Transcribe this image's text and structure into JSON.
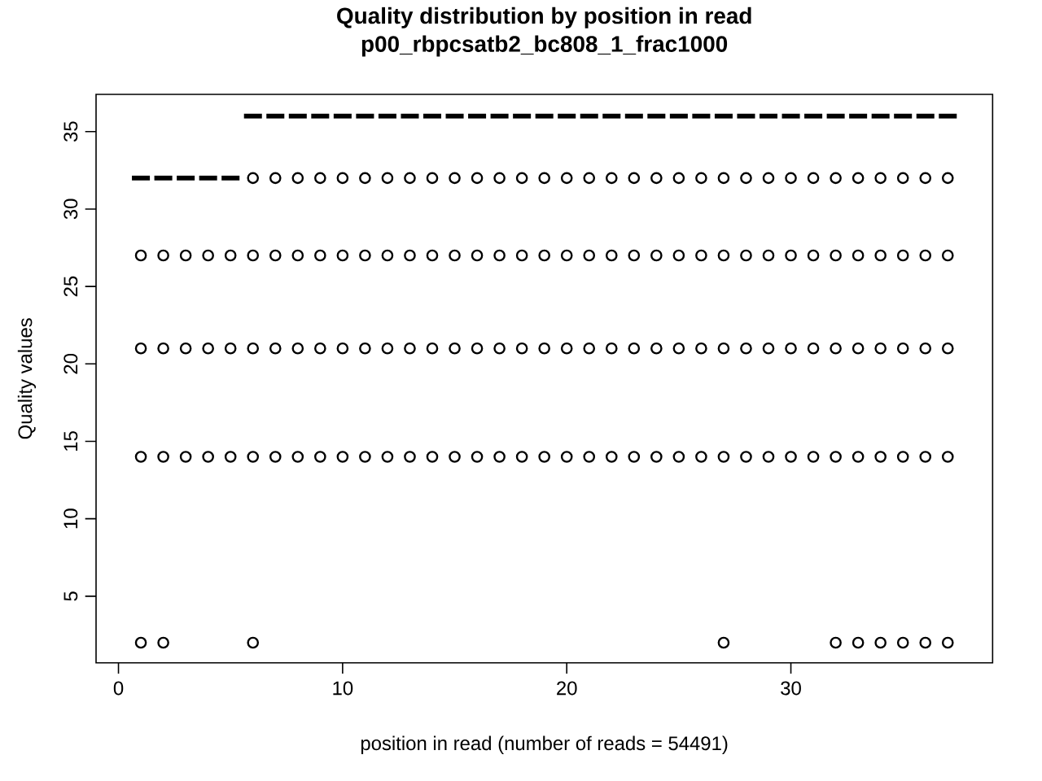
{
  "chart_data": {
    "type": "box",
    "title": "Quality distribution by position in read",
    "subtitle": "p00_rbpcsatb2_bc808_1_frac1000",
    "xlabel": "position in read (number of reads = 54491)",
    "ylabel": "Quality values",
    "x": [
      1,
      2,
      3,
      4,
      5,
      6,
      7,
      8,
      9,
      10,
      11,
      12,
      13,
      14,
      15,
      16,
      17,
      18,
      19,
      20,
      21,
      22,
      23,
      24,
      25,
      26,
      27,
      28,
      29,
      30,
      31,
      32,
      33,
      34,
      35,
      36,
      37
    ],
    "xlim": [
      -1,
      39
    ],
    "xticks": [
      0,
      10,
      20,
      30
    ],
    "ylim": [
      0.7,
      37.4
    ],
    "yticks": [
      5,
      10,
      15,
      20,
      25,
      30,
      35
    ],
    "marker": "circle",
    "color": "#000000",
    "boxes": [
      {
        "low": 32,
        "q1": 32,
        "median": 32,
        "q3": 32,
        "high": 32,
        "outliers": [
          2,
          14,
          21,
          27
        ]
      },
      {
        "low": 32,
        "q1": 32,
        "median": 32,
        "q3": 32,
        "high": 32,
        "outliers": [
          2,
          14,
          21,
          27
        ]
      },
      {
        "low": 32,
        "q1": 32,
        "median": 32,
        "q3": 32,
        "high": 32,
        "outliers": [
          14,
          21,
          27
        ]
      },
      {
        "low": 32,
        "q1": 32,
        "median": 32,
        "q3": 32,
        "high": 32,
        "outliers": [
          14,
          21,
          27
        ]
      },
      {
        "low": 32,
        "q1": 32,
        "median": 32,
        "q3": 32,
        "high": 32,
        "outliers": [
          14,
          21,
          27
        ]
      },
      {
        "low": 36,
        "q1": 36,
        "median": 36,
        "q3": 36,
        "high": 36,
        "outliers": [
          2,
          14,
          21,
          27,
          32
        ]
      },
      {
        "low": 36,
        "q1": 36,
        "median": 36,
        "q3": 36,
        "high": 36,
        "outliers": [
          14,
          21,
          27,
          32
        ]
      },
      {
        "low": 36,
        "q1": 36,
        "median": 36,
        "q3": 36,
        "high": 36,
        "outliers": [
          14,
          21,
          27,
          32
        ]
      },
      {
        "low": 36,
        "q1": 36,
        "median": 36,
        "q3": 36,
        "high": 36,
        "outliers": [
          14,
          21,
          27,
          32
        ]
      },
      {
        "low": 36,
        "q1": 36,
        "median": 36,
        "q3": 36,
        "high": 36,
        "outliers": [
          14,
          21,
          27,
          32
        ]
      },
      {
        "low": 36,
        "q1": 36,
        "median": 36,
        "q3": 36,
        "high": 36,
        "outliers": [
          14,
          21,
          27,
          32
        ]
      },
      {
        "low": 36,
        "q1": 36,
        "median": 36,
        "q3": 36,
        "high": 36,
        "outliers": [
          14,
          21,
          27,
          32
        ]
      },
      {
        "low": 36,
        "q1": 36,
        "median": 36,
        "q3": 36,
        "high": 36,
        "outliers": [
          14,
          21,
          27,
          32
        ]
      },
      {
        "low": 36,
        "q1": 36,
        "median": 36,
        "q3": 36,
        "high": 36,
        "outliers": [
          14,
          21,
          27,
          32
        ]
      },
      {
        "low": 36,
        "q1": 36,
        "median": 36,
        "q3": 36,
        "high": 36,
        "outliers": [
          14,
          21,
          27,
          32
        ]
      },
      {
        "low": 36,
        "q1": 36,
        "median": 36,
        "q3": 36,
        "high": 36,
        "outliers": [
          14,
          21,
          27,
          32
        ]
      },
      {
        "low": 36,
        "q1": 36,
        "median": 36,
        "q3": 36,
        "high": 36,
        "outliers": [
          14,
          21,
          27,
          32
        ]
      },
      {
        "low": 36,
        "q1": 36,
        "median": 36,
        "q3": 36,
        "high": 36,
        "outliers": [
          14,
          21,
          27,
          32
        ]
      },
      {
        "low": 36,
        "q1": 36,
        "median": 36,
        "q3": 36,
        "high": 36,
        "outliers": [
          14,
          21,
          27,
          32
        ]
      },
      {
        "low": 36,
        "q1": 36,
        "median": 36,
        "q3": 36,
        "high": 36,
        "outliers": [
          14,
          21,
          27,
          32
        ]
      },
      {
        "low": 36,
        "q1": 36,
        "median": 36,
        "q3": 36,
        "high": 36,
        "outliers": [
          14,
          21,
          27,
          32
        ]
      },
      {
        "low": 36,
        "q1": 36,
        "median": 36,
        "q3": 36,
        "high": 36,
        "outliers": [
          14,
          21,
          27,
          32
        ]
      },
      {
        "low": 36,
        "q1": 36,
        "median": 36,
        "q3": 36,
        "high": 36,
        "outliers": [
          14,
          21,
          27,
          32
        ]
      },
      {
        "low": 36,
        "q1": 36,
        "median": 36,
        "q3": 36,
        "high": 36,
        "outliers": [
          14,
          21,
          27,
          32
        ]
      },
      {
        "low": 36,
        "q1": 36,
        "median": 36,
        "q3": 36,
        "high": 36,
        "outliers": [
          14,
          21,
          27,
          32
        ]
      },
      {
        "low": 36,
        "q1": 36,
        "median": 36,
        "q3": 36,
        "high": 36,
        "outliers": [
          14,
          21,
          27,
          32
        ]
      },
      {
        "low": 36,
        "q1": 36,
        "median": 36,
        "q3": 36,
        "high": 36,
        "outliers": [
          2,
          14,
          21,
          27,
          32
        ]
      },
      {
        "low": 36,
        "q1": 36,
        "median": 36,
        "q3": 36,
        "high": 36,
        "outliers": [
          14,
          21,
          27,
          32
        ]
      },
      {
        "low": 36,
        "q1": 36,
        "median": 36,
        "q3": 36,
        "high": 36,
        "outliers": [
          14,
          21,
          27,
          32
        ]
      },
      {
        "low": 36,
        "q1": 36,
        "median": 36,
        "q3": 36,
        "high": 36,
        "outliers": [
          14,
          21,
          27,
          32
        ]
      },
      {
        "low": 36,
        "q1": 36,
        "median": 36,
        "q3": 36,
        "high": 36,
        "outliers": [
          14,
          21,
          27,
          32
        ]
      },
      {
        "low": 36,
        "q1": 36,
        "median": 36,
        "q3": 36,
        "high": 36,
        "outliers": [
          2,
          14,
          21,
          27,
          32
        ]
      },
      {
        "low": 36,
        "q1": 36,
        "median": 36,
        "q3": 36,
        "high": 36,
        "outliers": [
          2,
          14,
          21,
          27,
          32
        ]
      },
      {
        "low": 36,
        "q1": 36,
        "median": 36,
        "q3": 36,
        "high": 36,
        "outliers": [
          2,
          14,
          21,
          27,
          32
        ]
      },
      {
        "low": 36,
        "q1": 36,
        "median": 36,
        "q3": 36,
        "high": 36,
        "outliers": [
          2,
          14,
          21,
          27,
          32
        ]
      },
      {
        "low": 36,
        "q1": 36,
        "median": 36,
        "q3": 36,
        "high": 36,
        "outliers": [
          2,
          14,
          21,
          27,
          32
        ]
      },
      {
        "low": 36,
        "q1": 36,
        "median": 36,
        "q3": 36,
        "high": 36,
        "outliers": [
          2,
          14,
          21,
          27,
          32
        ]
      }
    ]
  }
}
